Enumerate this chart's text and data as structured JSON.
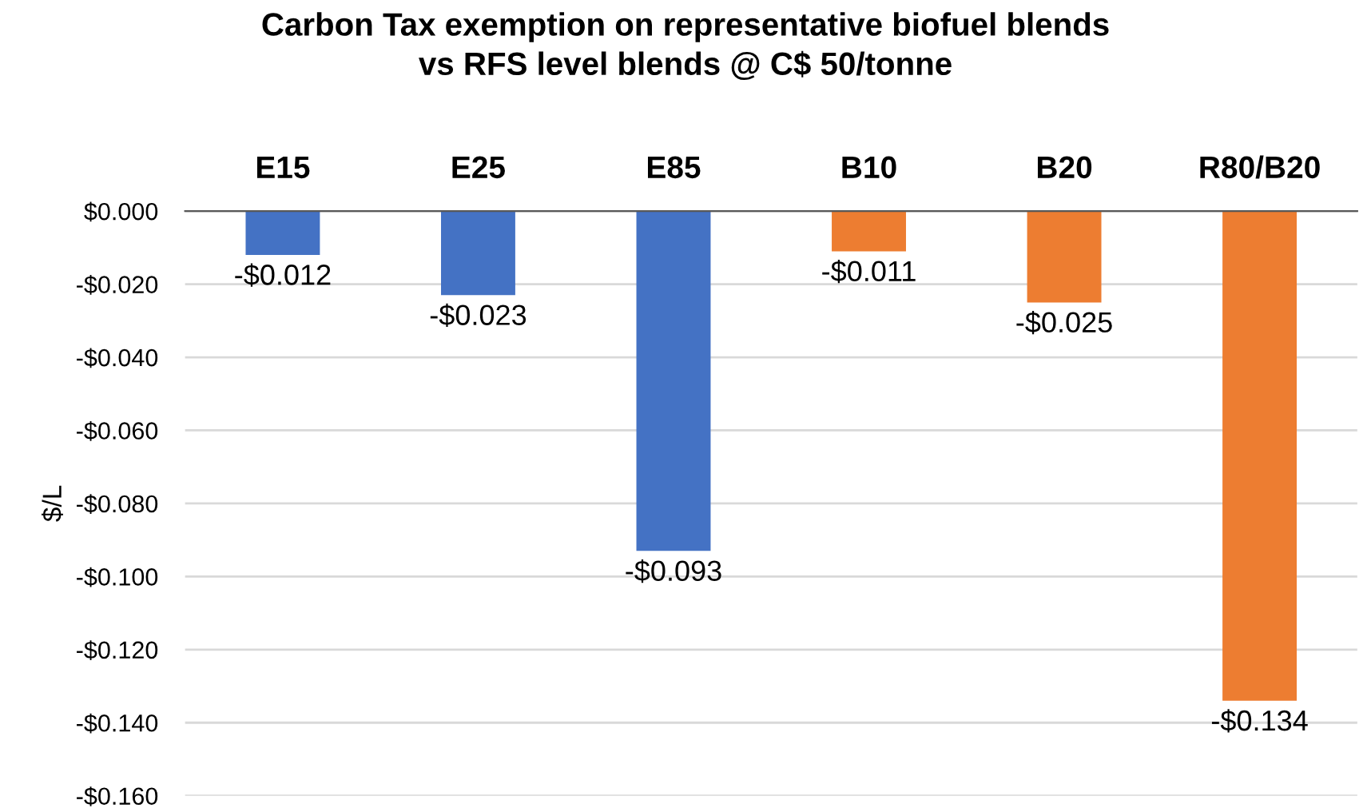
{
  "chart_data": {
    "type": "bar",
    "title": "Carbon Tax exemption on representative biofuel blends\nvs RFS level blends @ C$ 50/tonne",
    "ylabel": "$/L",
    "categories": [
      "E15",
      "E25",
      "E85",
      "B10",
      "B20",
      "R80/B20"
    ],
    "values": [
      -0.012,
      -0.023,
      -0.093,
      -0.011,
      -0.025,
      -0.134
    ],
    "colors": [
      "#4472c4",
      "#4472c4",
      "#4472c4",
      "#ed7d31",
      "#ed7d31",
      "#ed7d31"
    ],
    "value_labels": [
      "-$0.012",
      "-$0.023",
      "-$0.093",
      "-$0.011",
      "-$0.025",
      "-$0.134"
    ],
    "ylim": [
      -0.16,
      0
    ],
    "yticks": [
      {
        "value": 0,
        "label": "$0.000"
      },
      {
        "value": -0.02,
        "label": "-$0.020"
      },
      {
        "value": -0.04,
        "label": "-$0.040"
      },
      {
        "value": -0.06,
        "label": "-$0.060"
      },
      {
        "value": -0.08,
        "label": "-$0.080"
      },
      {
        "value": -0.1,
        "label": "-$0.100"
      },
      {
        "value": -0.12,
        "label": "-$0.120"
      },
      {
        "value": -0.14,
        "label": "-$0.140"
      },
      {
        "value": -0.16,
        "label": "-$0.160"
      }
    ],
    "grid": "y",
    "legend": false
  }
}
